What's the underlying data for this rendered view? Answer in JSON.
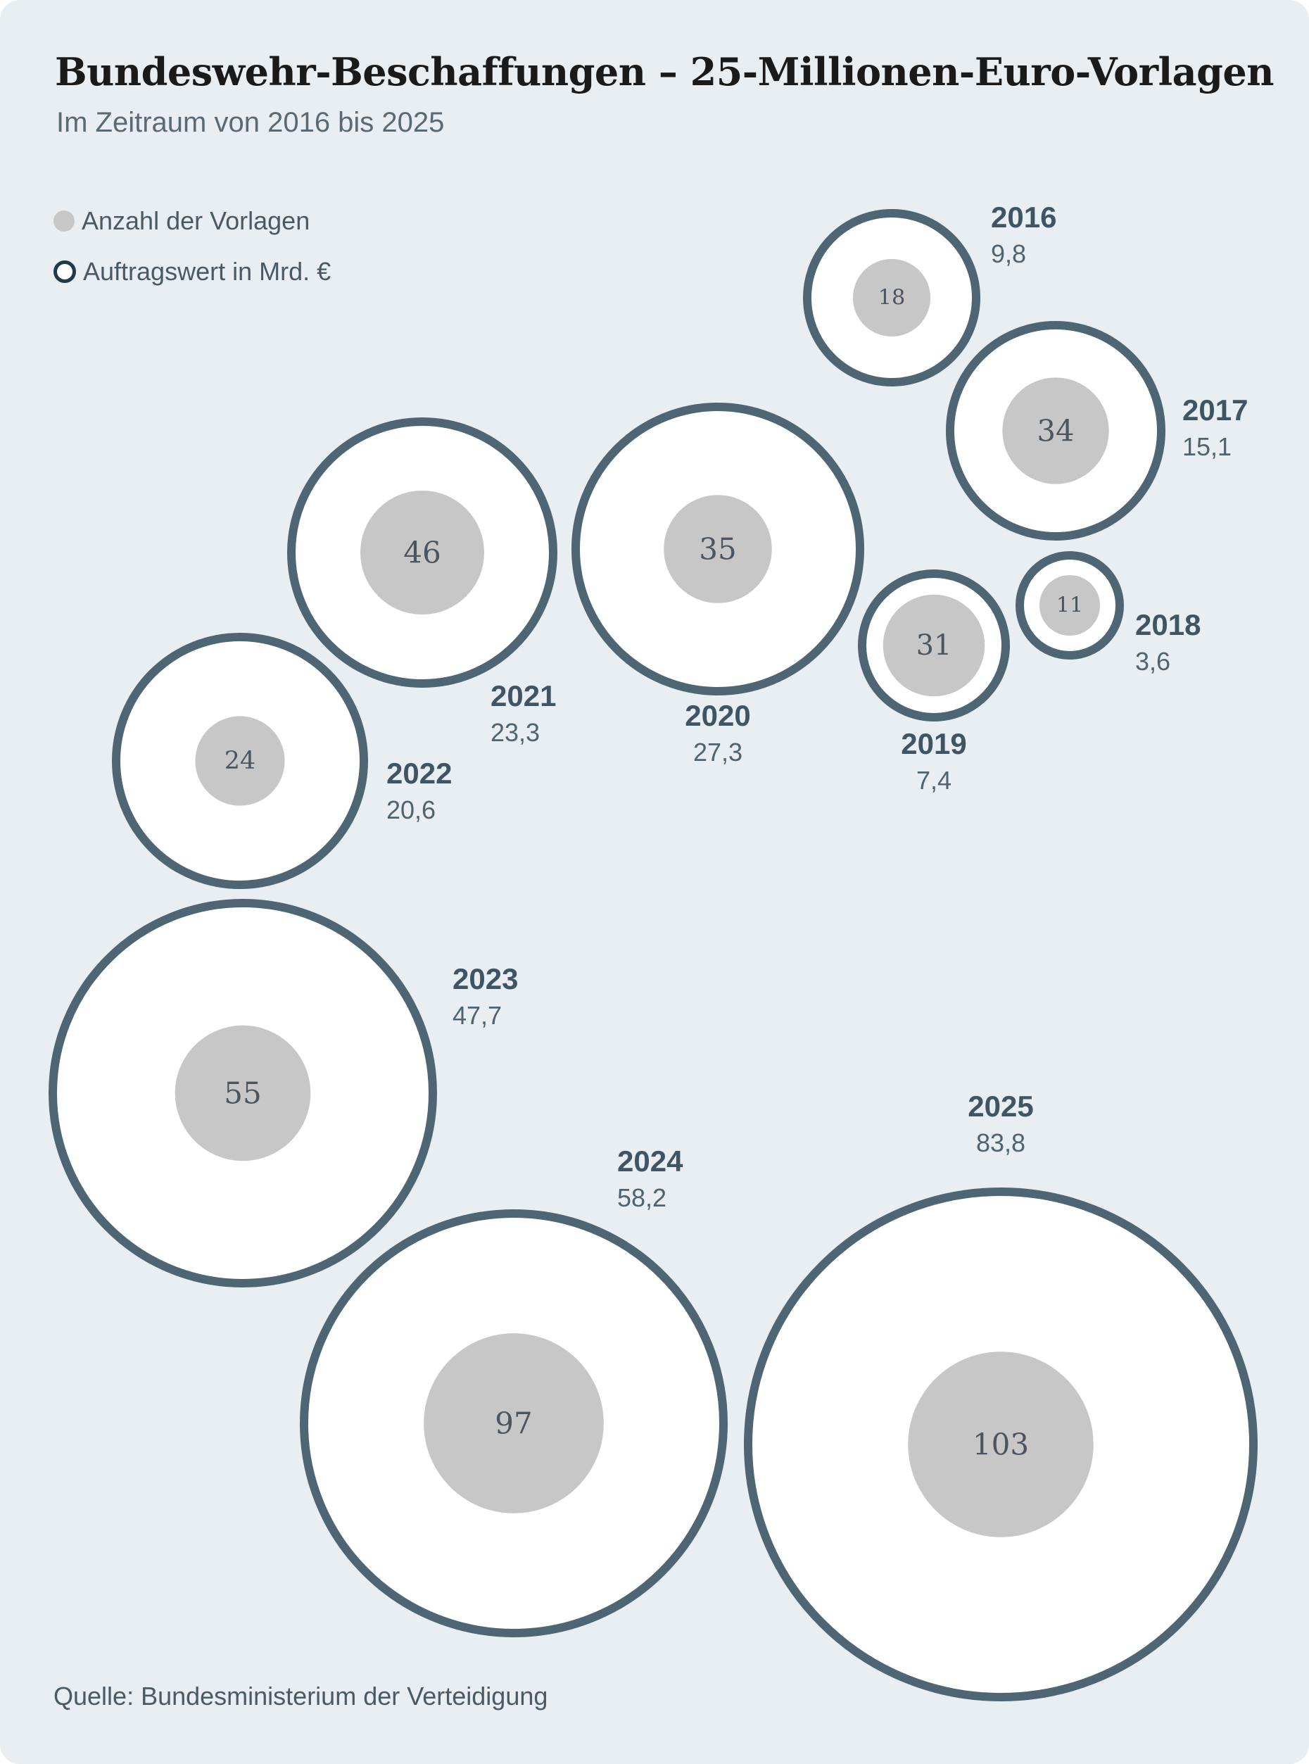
{
  "title": "Bundeswehr-Beschaffungen – 25-Millionen-Euro-Vorlagen",
  "subtitle": "Im Zeitraum von 2016 bis 2025",
  "legend": {
    "count": "Anzahl der Vorlagen",
    "value": "Auftragswert in Mrd. €"
  },
  "source": "Quelle: Bundesministerium der Verteidigung",
  "colors": {
    "background": "#e8eef1",
    "ring": "#4e6573",
    "count_fill": "#c7c7c7",
    "bubble_fill": "#ffffff"
  },
  "chart_data": {
    "type": "bubble",
    "title": "Bundeswehr-Beschaffungen – 25-Millionen-Euro-Vorlagen",
    "subtitle": "Im Zeitraum von 2016 bis 2025",
    "series": [
      {
        "name": "Anzahl der Vorlagen",
        "encoding": "inner filled circle area"
      },
      {
        "name": "Auftragswert in Mrd. €",
        "encoding": "outer ring circle area"
      }
    ],
    "points": [
      {
        "year": "2016",
        "count": 18,
        "value": 9.8,
        "value_label": "9,8"
      },
      {
        "year": "2017",
        "count": 34,
        "value": 15.1,
        "value_label": "15,1"
      },
      {
        "year": "2018",
        "count": 11,
        "value": 3.6,
        "value_label": "3,6"
      },
      {
        "year": "2019",
        "count": 31,
        "value": 7.4,
        "value_label": "7,4"
      },
      {
        "year": "2020",
        "count": 35,
        "value": 27.3,
        "value_label": "27,3"
      },
      {
        "year": "2021",
        "count": 46,
        "value": 23.3,
        "value_label": "23,3"
      },
      {
        "year": "2022",
        "count": 24,
        "value": 20.6,
        "value_label": "20,6"
      },
      {
        "year": "2023",
        "count": 55,
        "value": 47.7,
        "value_label": "47,7"
      },
      {
        "year": "2024",
        "count": 97,
        "value": 58.2,
        "value_label": "58,2"
      },
      {
        "year": "2025",
        "count": 103,
        "value": 83.8,
        "value_label": "83,8"
      }
    ],
    "legend_position": "top-left",
    "grid": false
  }
}
